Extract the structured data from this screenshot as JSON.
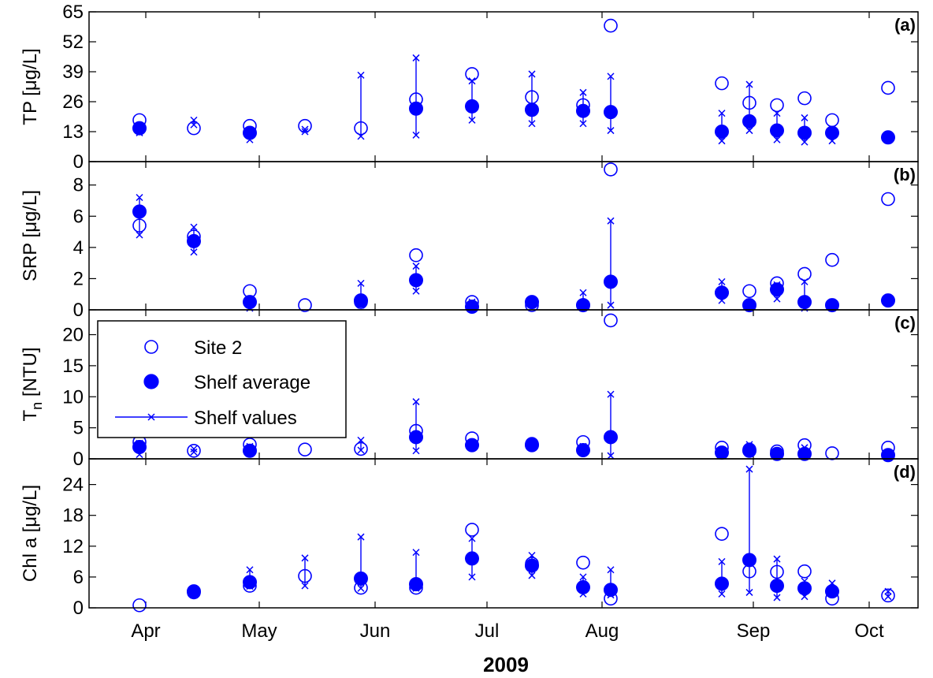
{
  "figure": {
    "xlabel": "2009",
    "month_ticks": [
      "Apr",
      "May",
      "Jun",
      "Jul",
      "Aug",
      "Sep",
      "Oct"
    ],
    "colors": {
      "series": "#0000ff",
      "axis": "#000000",
      "zero_line": "#808080"
    }
  },
  "legend": {
    "placement": "top-left of panel (c)",
    "items": [
      {
        "label": "Site 2",
        "marker": "open-circle"
      },
      {
        "label": "Shelf average",
        "marker": "filled-circle"
      },
      {
        "label": "Shelf values",
        "marker": "line-with-x"
      }
    ]
  },
  "chart_data": [
    {
      "type": "scatter",
      "panel": "(a)",
      "ylabel": "TP [μg/L]",
      "ylim": [
        0,
        65
      ],
      "yticks": [
        0,
        13,
        26,
        39,
        52,
        65
      ],
      "x": [
        "Apr 7",
        "Apr 22",
        "May 5",
        "May 19",
        "Jun 2",
        "Jun 14",
        "Jun 30",
        "Jul 13",
        "Jul 26",
        "Aug 4",
        "Aug 30",
        "Sep 8",
        "Sep 16",
        "Sep 23",
        "Sep 30",
        "Oct 13"
      ],
      "series": [
        {
          "name": "Site 2",
          "values": [
            18,
            14.5,
            15.5,
            15.5,
            14.5,
            27,
            38,
            28,
            24.5,
            59,
            34,
            25.5,
            24.5,
            27.5,
            18,
            32
          ]
        },
        {
          "name": "Shelf average",
          "values": [
            14.5,
            null,
            12.5,
            null,
            null,
            23,
            24,
            22.5,
            22,
            21.5,
            13,
            17.5,
            13.5,
            12.5,
            12.5,
            10.5
          ]
        },
        {
          "name": "Shelf values",
          "min": [
            12.5,
            16,
            9.5,
            13,
            11,
            11.5,
            18,
            16.5,
            16.5,
            13.5,
            9,
            13.5,
            9.5,
            8.5,
            9,
            null
          ],
          "max": [
            14,
            18,
            13.5,
            14,
            37.5,
            45,
            35,
            38,
            30,
            37,
            21,
            33.5,
            21,
            19,
            13.5,
            null
          ]
        }
      ]
    },
    {
      "type": "scatter",
      "panel": "(b)",
      "ylabel": "SRP [μg/L]",
      "ylim": [
        0,
        9.5
      ],
      "yticks": [
        0,
        2,
        4,
        6,
        8
      ],
      "x": [
        "Apr 7",
        "Apr 22",
        "May 5",
        "May 19",
        "Jun 2",
        "Jun 14",
        "Jun 30",
        "Jul 13",
        "Jul 26",
        "Aug 4",
        "Aug 30",
        "Sep 8",
        "Sep 16",
        "Sep 23",
        "Sep 30",
        "Oct 13"
      ],
      "series": [
        {
          "name": "Site 2",
          "values": [
            5.4,
            4.7,
            1.2,
            0.3,
            0.5,
            3.5,
            0.5,
            0.3,
            0.3,
            9.0,
            1.1,
            1.2,
            1.7,
            2.3,
            3.2,
            7.1
          ]
        },
        {
          "name": "Shelf average",
          "values": [
            6.3,
            4.4,
            0.5,
            null,
            0.6,
            1.9,
            0.2,
            0.5,
            0.3,
            1.8,
            1.1,
            0.3,
            1.3,
            0.5,
            0.3,
            0.6
          ]
        },
        {
          "name": "Shelf values",
          "min": [
            4.8,
            3.7,
            0.1,
            null,
            0.3,
            1.2,
            0.1,
            0.3,
            0.1,
            0.3,
            0.6,
            0.1,
            0.7,
            0.1,
            0.1,
            0.5
          ],
          "max": [
            7.2,
            5.3,
            0.7,
            null,
            1.7,
            2.8,
            0.5,
            0.6,
            1.1,
            5.7,
            1.8,
            0.5,
            1.6,
            1.8,
            0.5,
            0.8
          ]
        }
      ]
    },
    {
      "type": "scatter",
      "panel": "(c)",
      "ylabel": "T_n [NTU]",
      "ylim": [
        0,
        24
      ],
      "yticks": [
        0,
        5,
        10,
        15,
        20
      ],
      "x": [
        "Apr 7",
        "Apr 22",
        "May 5",
        "May 19",
        "Jun 2",
        "Jun 14",
        "Jun 30",
        "Jul 13",
        "Jul 26",
        "Aug 4",
        "Aug 30",
        "Sep 8",
        "Sep 16",
        "Sep 23",
        "Sep 30",
        "Oct 13"
      ],
      "series": [
        {
          "name": "Site 2",
          "values": [
            2.7,
            1.3,
            2.3,
            1.5,
            1.6,
            4.5,
            3.3,
            2.4,
            2.7,
            22.3,
            1.8,
            1.5,
            1.2,
            2.2,
            0.9,
            1.8
          ]
        },
        {
          "name": "Shelf average",
          "values": [
            1.9,
            null,
            1.3,
            null,
            null,
            3.5,
            2.2,
            2.2,
            1.4,
            3.5,
            1.0,
            1.3,
            0.8,
            0.8,
            null,
            0.6
          ]
        },
        {
          "name": "Shelf values",
          "min": [
            0.7,
            1.1,
            1.0,
            null,
            1.4,
            1.3,
            2.0,
            2.0,
            1.1,
            0.5,
            0.8,
            1.1,
            0.6,
            0.6,
            null,
            0.5
          ],
          "max": [
            2.5,
            1.6,
            2.0,
            null,
            3.0,
            9.2,
            2.4,
            2.4,
            2.0,
            10.4,
            1.4,
            2.3,
            1.2,
            1.8,
            null,
            0.9
          ]
        }
      ]
    },
    {
      "type": "scatter",
      "panel": "(d)",
      "ylabel": "Chl a [μg/L]",
      "ylim": [
        0,
        29
      ],
      "yticks": [
        0,
        6,
        12,
        18,
        24
      ],
      "x": [
        "Apr 7",
        "Apr 22",
        "May 5",
        "May 19",
        "Jun 2",
        "Jun 14",
        "Jun 30",
        "Jul 13",
        "Jul 26",
        "Aug 4",
        "Aug 30",
        "Sep 8",
        "Sep 16",
        "Sep 23",
        "Sep 30",
        "Oct 13"
      ],
      "series": [
        {
          "name": "Site 2",
          "values": [
            0.5,
            3.0,
            4.3,
            6.2,
            3.9,
            3.9,
            15.2,
            8.6,
            8.8,
            1.8,
            14.4,
            7.1,
            7.0,
            7.1,
            1.8,
            2.4
          ]
        },
        {
          "name": "Shelf average",
          "values": [
            null,
            3.2,
            5.0,
            null,
            5.7,
            4.6,
            9.6,
            8.2,
            4.0,
            3.5,
            4.7,
            9.3,
            4.3,
            3.8,
            3.2,
            null
          ]
        },
        {
          "name": "Shelf values",
          "min": [
            null,
            2.7,
            4.2,
            4.3,
            3.8,
            3.8,
            6.0,
            6.3,
            2.7,
            2.5,
            2.7,
            3.0,
            2.0,
            2.2,
            2.8,
            2.2
          ],
          "max": [
            null,
            3.7,
            7.4,
            9.7,
            13.8,
            10.8,
            13.5,
            10.2,
            6.0,
            7.4,
            9.0,
            27.0,
            9.5,
            5.2,
            4.8,
            3.2
          ]
        }
      ]
    }
  ]
}
